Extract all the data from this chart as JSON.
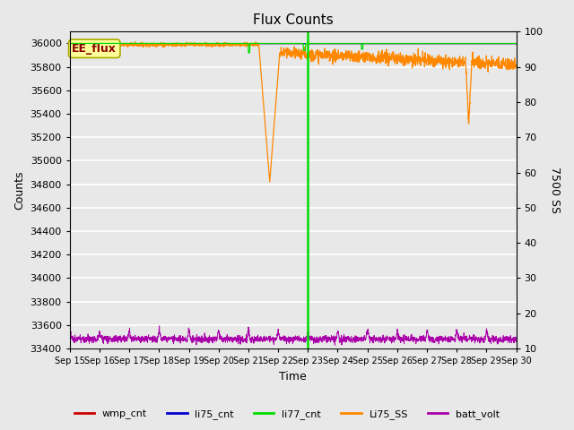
{
  "title": "Flux Counts",
  "xlabel": "Time",
  "ylabel_left": "Counts",
  "ylabel_right": "7500 SS",
  "ylim_left": [
    33400,
    36100
  ],
  "ylim_right": [
    10,
    100
  ],
  "yticks_left": [
    33400,
    33600,
    33800,
    34000,
    34200,
    34400,
    34600,
    34800,
    35000,
    35200,
    35400,
    35600,
    35800,
    36000
  ],
  "yticks_right": [
    10,
    20,
    30,
    40,
    50,
    60,
    70,
    80,
    90,
    100
  ],
  "xtick_labels": [
    "Sep 15",
    "Sep 16",
    "Sep 17",
    "Sep 18",
    "Sep 19",
    "Sep 20",
    "Sep 21",
    "Sep 22",
    "Sep 23",
    "Sep 24",
    "Sep 25",
    "Sep 26",
    "Sep 27",
    "Sep 28",
    "Sep 29",
    "Sep 30"
  ],
  "plot_bg_color": "#e8e8e8",
  "grid_color": "#ffffff",
  "annotation_box_text": "EE_flux",
  "annotation_box_color": "#ffff99",
  "annotation_box_edge": "#aaaa00",
  "colors": {
    "wmp_cnt": "#cc0000",
    "li75_cnt": "#0000cc",
    "li77_cnt": "#00dd00",
    "Li75_SS": "#ff8800",
    "batt_volt": "#aa00aa"
  },
  "legend_entries": [
    "wmp_cnt",
    "li75_cnt",
    "li77_cnt",
    "Li75_SS",
    "batt_volt"
  ],
  "figsize": [
    6.4,
    4.8
  ],
  "dpi": 100
}
